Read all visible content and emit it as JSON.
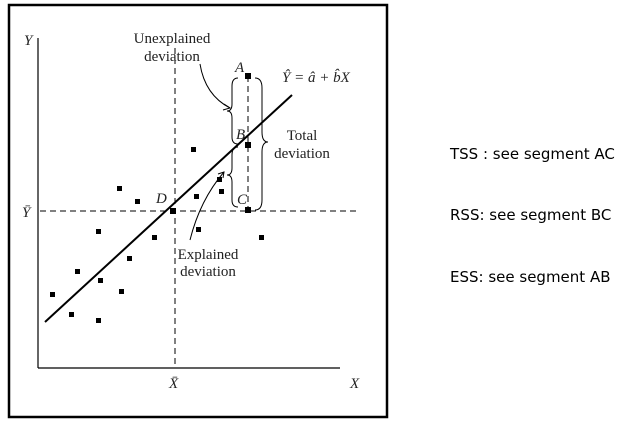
{
  "diagram": {
    "axes": {
      "y_label": "Y",
      "x_label": "X",
      "y_mean_label": "Ȳ",
      "x_mean_label": "X̄"
    },
    "regression_line": "Ŷ = â + b̂X",
    "points": {
      "a": "A",
      "b": "B",
      "c": "C",
      "d": "D"
    },
    "annotations": {
      "unexplained": [
        "Unexplained",
        "deviation"
      ],
      "total": [
        "Total",
        "deviation"
      ],
      "explained": [
        "Explained",
        "deviation"
      ]
    }
  },
  "notes": [
    "TSS : see segment AC",
    "RSS: see segment BC",
    "ESS: see segment AB"
  ]
}
